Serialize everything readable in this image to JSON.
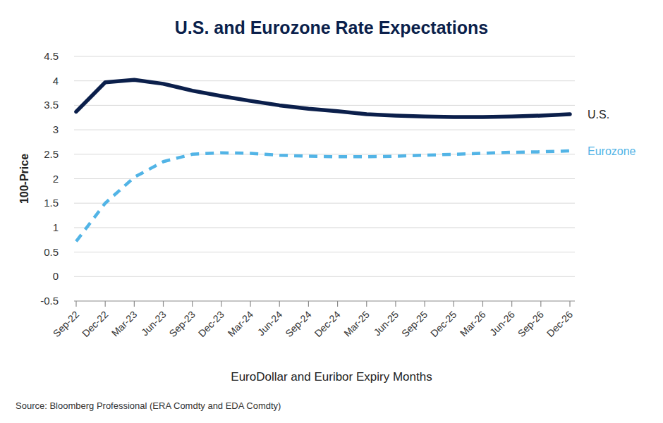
{
  "chart_data": {
    "type": "line",
    "title": "U.S. and Eurozone Rate Expectations",
    "y_label": "100-Price",
    "x_label": "EuroDollar and Euribor Expiry Months",
    "source": "Source: Bloomberg Professional (ERA Comdty and EDA Comdty)",
    "categories": [
      "Sep-22",
      "Dec-22",
      "Mar-23",
      "Jun-23",
      "Sep-23",
      "Dec-23",
      "Mar-24",
      "Jun-24",
      "Sep-24",
      "Dec-24",
      "Mar-25",
      "Jun-25",
      "Sep-25",
      "Dec-25",
      "Mar-26",
      "Jun-26",
      "Sep-26",
      "Dec-26"
    ],
    "series": [
      {
        "name": "U.S.",
        "color": "#0b1f4b",
        "line_style": "solid",
        "values": [
          3.37,
          3.97,
          4.02,
          3.94,
          3.8,
          3.69,
          3.59,
          3.5,
          3.43,
          3.38,
          3.32,
          3.29,
          3.27,
          3.26,
          3.26,
          3.27,
          3.29,
          3.32
        ]
      },
      {
        "name": "Eurozone",
        "color": "#52b4e6",
        "line_style": "dashed",
        "values": [
          0.72,
          1.5,
          2.03,
          2.35,
          2.5,
          2.53,
          2.52,
          2.48,
          2.46,
          2.45,
          2.45,
          2.46,
          2.48,
          2.5,
          2.52,
          2.54,
          2.55,
          2.57
        ]
      }
    ],
    "ylim": [
      -0.5,
      4.5
    ],
    "yticks": [
      -0.5,
      0,
      0.5,
      1,
      1.5,
      2,
      2.5,
      3,
      3.5,
      4,
      4.5
    ],
    "grid": true
  }
}
